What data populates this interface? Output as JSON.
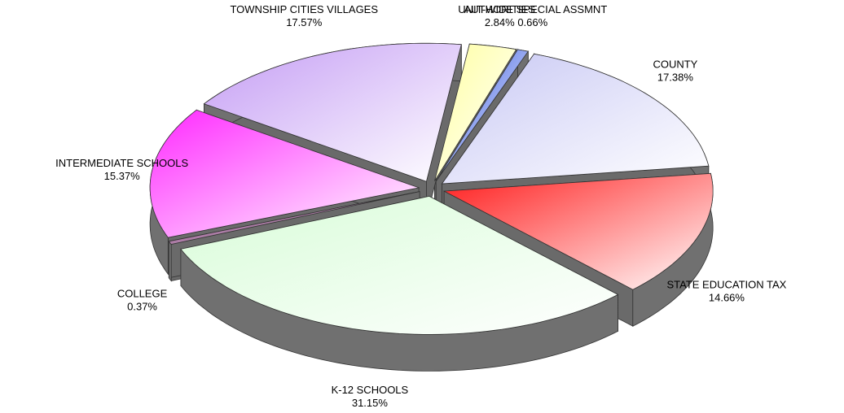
{
  "chart_data": {
    "type": "pie",
    "categories": [
      "COUNTY",
      "STATE EDUCATION TAX",
      "K-12 SCHOOLS",
      "COLLEGE",
      "INTERMEDIATE SCHOOLS",
      "TOWNSHIP CITIES VILLAGES",
      "AUTHORITIES",
      "UNIT-WIDE SPECIAL ASSMNT"
    ],
    "values": [
      17.38,
      14.66,
      31.15,
      0.37,
      15.37,
      17.57,
      2.84,
      0.66
    ],
    "value_labels": [
      "17.38%",
      "14.66%",
      "31.15%",
      "0.37%",
      "15.37%",
      "17.57%",
      "2.84%",
      "0.66%"
    ],
    "colors": [
      "#c8c8f4",
      "#ff1c1c",
      "#d8fcd8",
      "#5c0050",
      "#ff28ff",
      "#c49cf4",
      "#ffffa0",
      "#2c50e0"
    ]
  }
}
